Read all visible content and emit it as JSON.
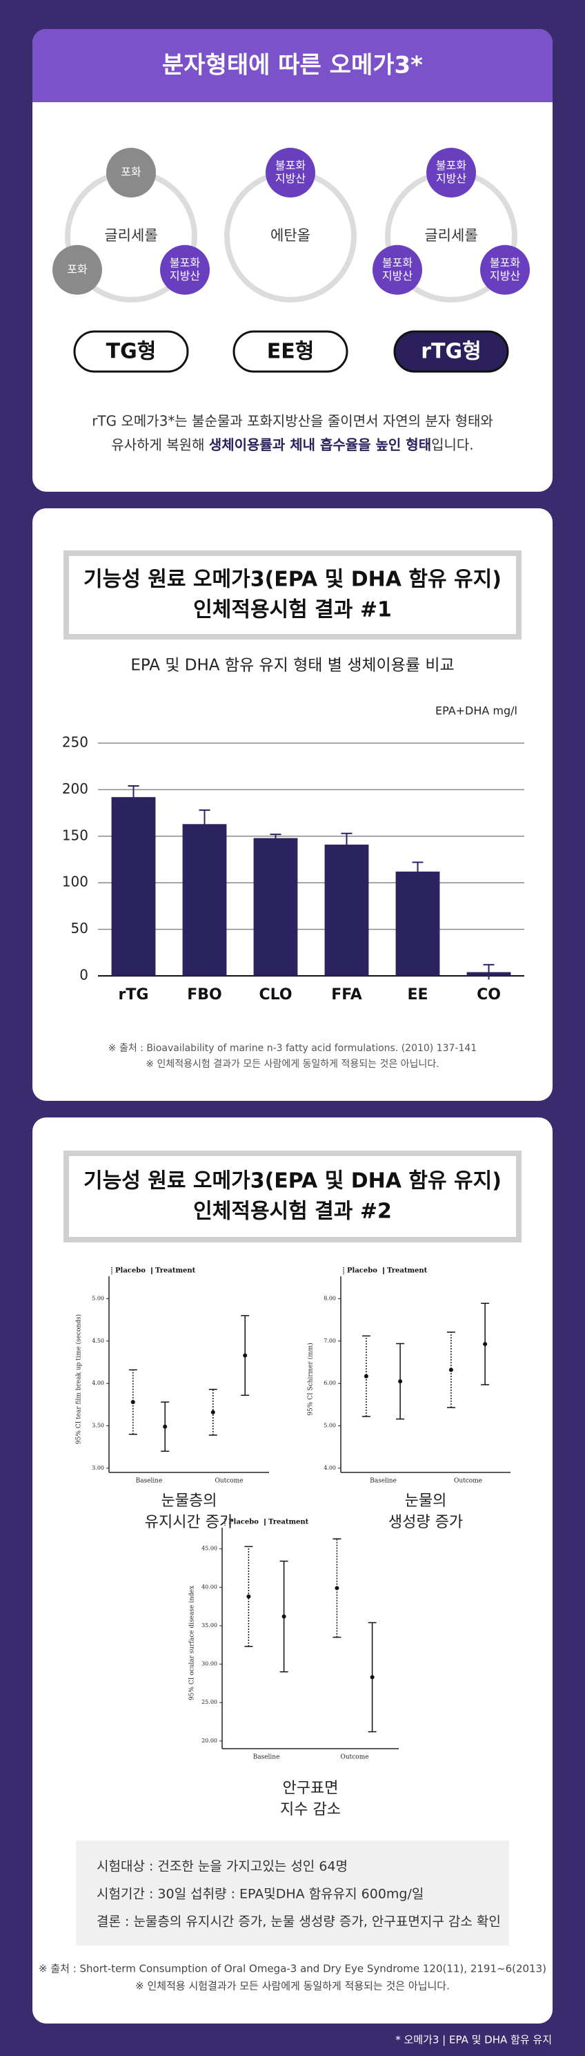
{
  "intro": {
    "title": "분자형태에 따른 오메가3*",
    "diagrams": [
      {
        "center": "글리세롤",
        "label": "TG형",
        "pill_color": "#ffffff",
        "nodes": [
          {
            "lines": [
              "포화"
            ],
            "color": "#8a8a8a"
          },
          {
            "lines": [
              "포화"
            ],
            "color": "#8a8a8a"
          },
          {
            "lines": [
              "불포화",
              "지방산"
            ],
            "color": "#6a3fbf"
          }
        ]
      },
      {
        "center": "에탄올",
        "label": "EE형",
        "pill_color": "#ffffff",
        "nodes": [
          {
            "lines": [
              "불포화",
              "지방산"
            ],
            "color": "#6a3fbf"
          }
        ]
      },
      {
        "center": "글리세롤",
        "label": "rTG형",
        "pill_color": "#2b1f5c",
        "nodes": [
          {
            "lines": [
              "불포화",
              "지방산"
            ],
            "color": "#6a3fbf"
          },
          {
            "lines": [
              "불포화",
              "지방산"
            ],
            "color": "#6a3fbf"
          },
          {
            "lines": [
              "불포화",
              "지방산"
            ],
            "color": "#6a3fbf"
          }
        ]
      }
    ],
    "text_line1": "rTG 오메가3*는 불순물과 포화지방산을 줄이면서 자연의 분자 형태와",
    "text_line2": [
      "유사하게 복원해 ",
      "생체이용률과 체내 흡수율을 높인 형태",
      "입니다."
    ]
  },
  "study1": {
    "title_lines": [
      "기능성 원료 오메가3(EPA 및 DHA 함유 유지)",
      "인체적용시험 결과 #1"
    ],
    "subtitle": "EPA 및 DHA 함유 유지 형태 별 생체이용률 비교",
    "sources": [
      "※ 출처 : Bioavailability of marine n-3 fatty acid formulations. (2010) 137-141",
      "※ 인체적용시험 결과가 모든 사람에게 동일하게 적용되는 것은 아닙니다."
    ]
  },
  "chart_data": [
    {
      "type": "bar",
      "ylabel": "EPA+DHA mg/l",
      "categories": [
        "rTG",
        "FBO",
        "CLO",
        "FFA",
        "EE",
        "CO"
      ],
      "values": [
        192,
        163,
        148,
        141,
        112,
        4
      ],
      "errors": [
        12,
        15,
        4,
        12,
        10,
        8
      ],
      "color": "#2b2260",
      "ylim": [
        0,
        250
      ],
      "yticks": [
        0,
        50,
        100,
        150,
        200,
        250
      ],
      "grid": true
    },
    {
      "type": "errorbar",
      "ylabel": "95% CI tear film break up time (seconds)",
      "categories": [
        "Baseline",
        "Outcome"
      ],
      "series": [
        {
          "name": "Placebo",
          "style": "dotted",
          "values": [
            3.78,
            3.66
          ],
          "errors": [
            0.38,
            0.27
          ]
        },
        {
          "name": "Treatment",
          "style": "solid",
          "values": [
            3.49,
            4.33
          ],
          "errors": [
            0.29,
            0.47
          ]
        }
      ],
      "ylim": [
        2.95,
        5.15
      ],
      "yticks": [
        {
          "value": 3,
          "label": "3.00"
        },
        {
          "value": 3.5,
          "label": "3.50"
        },
        {
          "value": 4,
          "label": "4.00"
        },
        {
          "value": 4.5,
          "label": "4.50"
        },
        {
          "value": 5,
          "label": "5.00"
        }
      ]
    },
    {
      "type": "errorbar",
      "ylabel": "95% CI Schirmer (mm)",
      "categories": [
        "Baseline",
        "Outcome"
      ],
      "series": [
        {
          "name": "Placebo",
          "style": "dotted",
          "values": [
            6.17,
            6.32
          ],
          "errors": [
            0.95,
            0.89
          ]
        },
        {
          "name": "Treatment",
          "style": "solid",
          "values": [
            6.05,
            6.93
          ],
          "errors": [
            0.89,
            0.96
          ]
        }
      ],
      "ylim": [
        3.9,
        8.3
      ],
      "yticks": [
        {
          "value": 4,
          "label": "4.00"
        },
        {
          "value": 5,
          "label": "5.00"
        },
        {
          "value": 6,
          "label": "6.00"
        },
        {
          "value": 7,
          "label": "7.00"
        },
        {
          "value": 8,
          "label": "8.00"
        }
      ]
    },
    {
      "type": "errorbar",
      "ylabel": "95% CI ocular surface disease index",
      "categories": [
        "Baseline",
        "Outcome"
      ],
      "series": [
        {
          "name": "Placebo",
          "style": "dotted",
          "values": [
            38.8,
            39.9
          ],
          "errors": [
            6.5,
            6.4
          ]
        },
        {
          "name": "Treatment",
          "style": "solid",
          "values": [
            36.2,
            28.3
          ],
          "errors": [
            7.2,
            7.1
          ]
        }
      ],
      "ylim": [
        19,
        46.5
      ],
      "yticks": [
        {
          "value": 20,
          "label": "20.00"
        },
        {
          "value": 25,
          "label": "25.00"
        },
        {
          "value": 30,
          "label": "30.00"
        },
        {
          "value": 35,
          "label": "35.00"
        },
        {
          "value": 40,
          "label": "40.00"
        },
        {
          "value": 45,
          "label": "45.00"
        }
      ]
    }
  ],
  "study2": {
    "title_lines": [
      "기능성 원료 오메가3(EPA 및 DHA 함유 유지)",
      "인체적용시험 결과 #2"
    ],
    "captions": [
      [
        "눈물층의",
        "유지시간 증가"
      ],
      [
        "눈물의",
        "생성량 증가"
      ],
      [
        "안구표면",
        "지수 감소"
      ]
    ],
    "details": [
      "시험대상 : 건조한 눈을 가지고있는 성인 64명",
      "시험기간 : 30일  섭취량 : EPA및DHA 함유유지 600mg/일",
      "결론 : 눈물층의 유지시간 증가, 눈물 생성량 증가, 안구표면지구 감소 확인"
    ],
    "sources": [
      "※ 출처 : Short-term Consumption of Oral Omega-3 and Dry Eye Syndrome 120(11), 2191~6(2013)",
      "※ 인체적용 시험결과가 모든 사람에게 동일하게 적용되는 것은 아닙니다."
    ]
  },
  "footer": "* 오메가3 | EPA 및 DHA 함유 유지"
}
